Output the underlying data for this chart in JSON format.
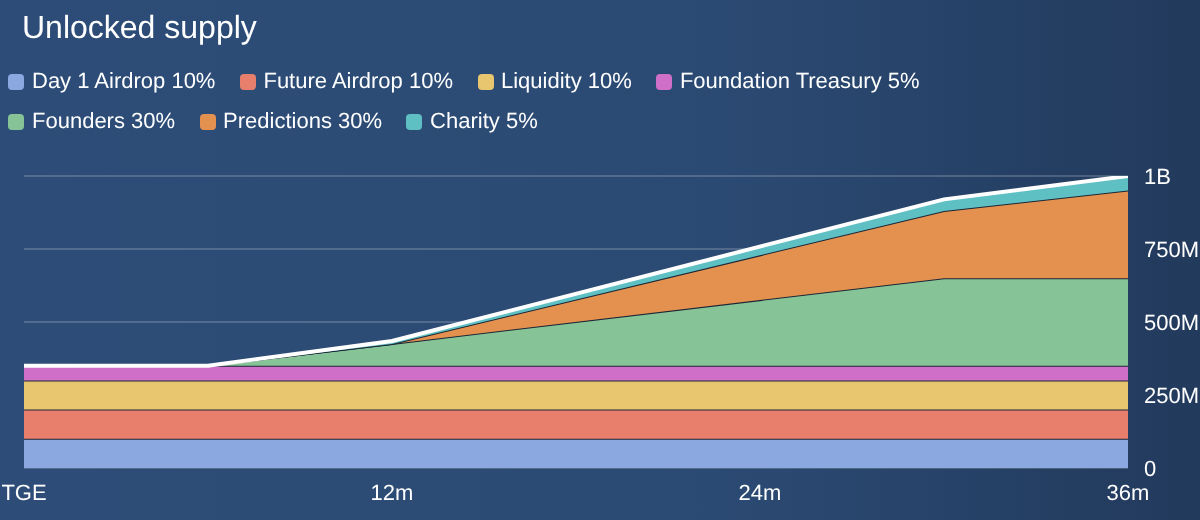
{
  "chart_data": {
    "type": "area",
    "stacked": true,
    "title": "Unlocked supply",
    "x": [
      0,
      6,
      12,
      30,
      36
    ],
    "xlim": [
      0,
      36
    ],
    "xticks": [
      {
        "value": 0,
        "label": "TGE"
      },
      {
        "value": 12,
        "label": "12m"
      },
      {
        "value": 24,
        "label": "24m"
      },
      {
        "value": 36,
        "label": "36m"
      }
    ],
    "ylim": [
      0,
      1000000000
    ],
    "yticks": [
      0,
      {
        "value": 250000000,
        "label": "250M"
      },
      {
        "value": 500000000,
        "label": "500M"
      },
      {
        "value": 750000000,
        "label": "750M"
      },
      {
        "value": 1000000000,
        "label": "1B"
      }
    ],
    "grid": "y",
    "legend": "top left",
    "series": [
      {
        "name": "Day 1 Airdrop 10%",
        "color": "#8ba9e0",
        "values": [
          100000000,
          100000000,
          100000000,
          100000000,
          100000000
        ]
      },
      {
        "name": "Future Airdrop 10%",
        "color": "#e77f6c",
        "values": [
          100000000,
          100000000,
          100000000,
          100000000,
          100000000
        ]
      },
      {
        "name": "Liquidity 10%",
        "color": "#e8c66f",
        "values": [
          100000000,
          100000000,
          100000000,
          100000000,
          100000000
        ]
      },
      {
        "name": "Foundation Treasury 5%",
        "color": "#cf6fc8",
        "values": [
          50000000,
          50000000,
          50000000,
          50000000,
          50000000
        ]
      },
      {
        "name": "Founders 30%",
        "color": "#86c497",
        "values": [
          0,
          0,
          75000000,
          300000000,
          300000000
        ]
      },
      {
        "name": "Predictions 30%",
        "color": "#e4914f",
        "values": [
          0,
          0,
          0,
          230000000,
          300000000
        ]
      },
      {
        "name": "Charity 5%",
        "color": "#5fc0c4",
        "values": [
          0,
          0,
          10000000,
          40000000,
          50000000
        ]
      }
    ]
  }
}
